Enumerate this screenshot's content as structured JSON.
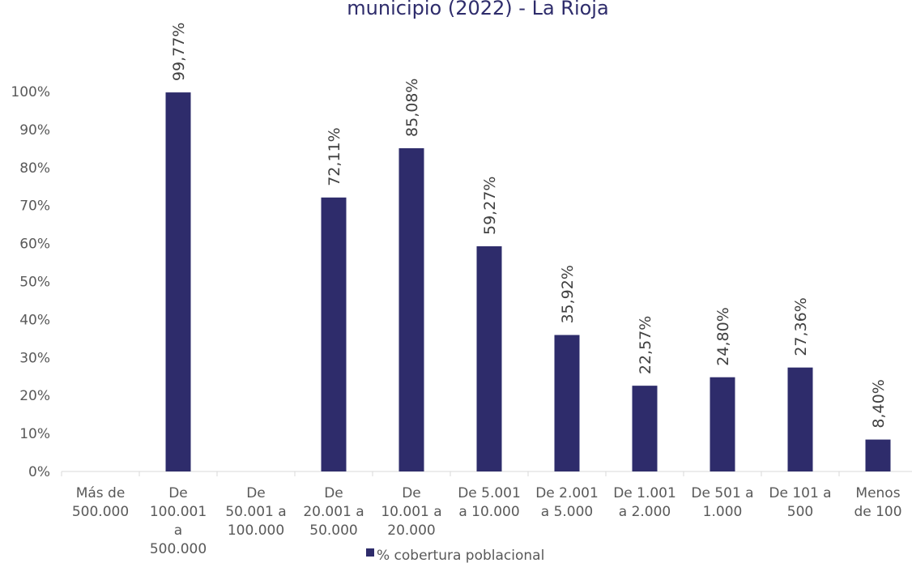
{
  "chart_data": {
    "type": "bar",
    "title": "municipio (2022) - La Rioja",
    "categories": [
      "Más de 500.000",
      "De 100.001 a 500.000",
      "De 50.001 a 100.000",
      "De 20.001 a 50.000",
      "De 10.001 a 20.000",
      "De 5.001 a 10.000",
      "De 2.001 a 5.000",
      "De 1.001 a 2.000",
      "De 501 a 1.000",
      "De 101 a 500",
      "Menos de 100"
    ],
    "category_lines": [
      [
        "Más de",
        "500.000"
      ],
      [
        "De",
        "100.001",
        "a",
        "500.000"
      ],
      [
        "De",
        "50.001 a",
        "100.000"
      ],
      [
        "De",
        "20.001 a",
        "50.000"
      ],
      [
        "De",
        "10.001 a",
        "20.000"
      ],
      [
        "De 5.001",
        "a 10.000"
      ],
      [
        "De 2.001",
        "a 5.000"
      ],
      [
        "De 1.001",
        "a 2.000"
      ],
      [
        "De 501 a",
        "1.000"
      ],
      [
        "De 101 a",
        "500"
      ],
      [
        "Menos",
        "de 100"
      ]
    ],
    "series": [
      {
        "name": "% cobertura poblacional",
        "color": "#2e2c6b",
        "values": [
          null,
          99.77,
          null,
          72.11,
          85.08,
          59.27,
          35.92,
          22.57,
          24.8,
          27.36,
          8.4
        ],
        "labels": [
          "",
          "99,77%",
          "",
          "72,11%",
          "85,08%",
          "59,27%",
          "35,92%",
          "22,57%",
          "24,80%",
          "27,36%",
          "8,40%"
        ]
      }
    ],
    "yticks": [
      "0%",
      "10%",
      "20%",
      "30%",
      "40%",
      "50%",
      "60%",
      "70%",
      "80%",
      "90%",
      "100%"
    ],
    "ylim": [
      0,
      100
    ],
    "grid": false,
    "legend_position": "bottom"
  }
}
